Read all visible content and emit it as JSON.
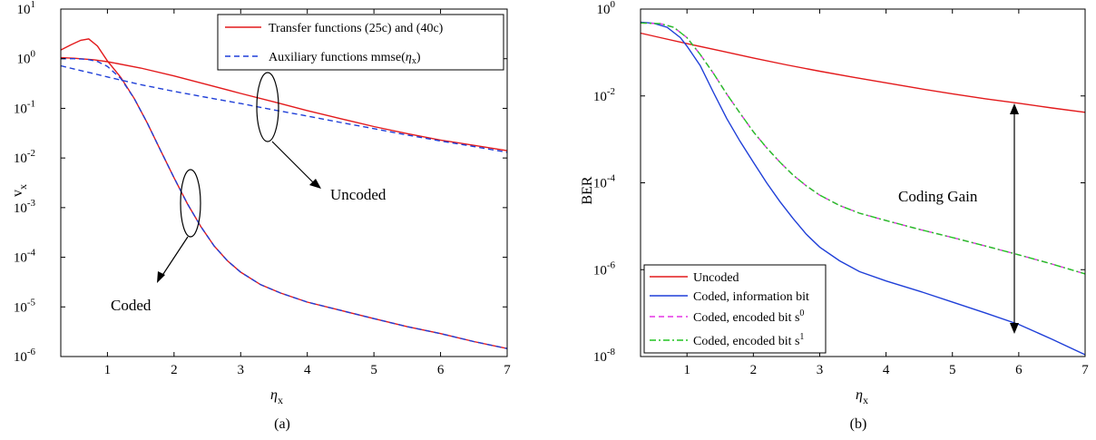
{
  "chart_data": [
    {
      "id": "a",
      "type": "line",
      "caption": "(a)",
      "xlabel": "η_x",
      "ylabel": "v_x",
      "xlim": [
        0.3,
        7
      ],
      "ylim_log10": [
        -6,
        1
      ],
      "y_scale": "log",
      "x_ticks": [
        1,
        2,
        3,
        4,
        5,
        6,
        7
      ],
      "y_ticks_exp": [
        -6,
        -5,
        -4,
        -3,
        -2,
        -1,
        0,
        1
      ],
      "grid": false,
      "legend_position": "top-right",
      "series": [
        {
          "name": "Transfer functions (25c) and (40c)",
          "color": "#e31a1c",
          "dash": "solid",
          "points": [
            [
              0.3,
              1.5
            ],
            [
              0.45,
              1.9
            ],
            [
              0.6,
              2.35
            ],
            [
              0.72,
              2.5
            ],
            [
              0.85,
              1.8
            ],
            [
              1.0,
              0.9
            ],
            [
              1.2,
              0.42
            ],
            [
              1.4,
              0.16
            ],
            [
              1.6,
              0.05
            ],
            [
              1.8,
              0.014
            ],
            [
              2.0,
              0.004
            ],
            [
              2.2,
              0.0012
            ],
            [
              2.4,
              0.00042
            ],
            [
              2.6,
              0.00017
            ],
            [
              2.8,
              8.5e-05
            ],
            [
              3.0,
              5e-05
            ],
            [
              3.3,
              2.8e-05
            ],
            [
              3.6,
              1.9e-05
            ],
            [
              4.0,
              1.25e-05
            ],
            [
              4.5,
              8.5e-06
            ],
            [
              5.0,
              5.8e-06
            ],
            [
              5.5,
              4e-06
            ],
            [
              6.0,
              2.9e-06
            ],
            [
              6.5,
              2e-06
            ],
            [
              7.0,
              1.45e-06
            ]
          ]
        },
        {
          "name": "Transfer functions (25c) and (40c)",
          "color": "#e31a1c",
          "dash": "solid",
          "points": [
            [
              0.3,
              1.05
            ],
            [
              0.5,
              1.02
            ],
            [
              0.8,
              0.95
            ],
            [
              1.0,
              0.87
            ],
            [
              1.5,
              0.65
            ],
            [
              2.0,
              0.45
            ],
            [
              2.5,
              0.3
            ],
            [
              3.0,
              0.2
            ],
            [
              3.5,
              0.135
            ],
            [
              4.0,
              0.09
            ],
            [
              4.5,
              0.062
            ],
            [
              5.0,
              0.043
            ],
            [
              5.5,
              0.031
            ],
            [
              6.0,
              0.023
            ],
            [
              6.5,
              0.018
            ],
            [
              7.0,
              0.014
            ]
          ]
        },
        {
          "name": "Auxiliary functions mmse(η_x)",
          "color": "#1f3fd8",
          "dash": "dashed",
          "points": [
            [
              0.3,
              0.72
            ],
            [
              0.5,
              0.62
            ],
            [
              0.8,
              0.5
            ],
            [
              1.0,
              0.43
            ],
            [
              1.5,
              0.3
            ],
            [
              2.0,
              0.22
            ],
            [
              2.5,
              0.165
            ],
            [
              3.0,
              0.125
            ],
            [
              3.5,
              0.093
            ],
            [
              4.0,
              0.07
            ],
            [
              4.5,
              0.052
            ],
            [
              5.0,
              0.039
            ],
            [
              5.5,
              0.029
            ],
            [
              6.0,
              0.022
            ],
            [
              6.5,
              0.017
            ],
            [
              7.0,
              0.013
            ]
          ]
        },
        {
          "name": "Auxiliary functions mmse(η_x)",
          "color": "#1f3fd8",
          "dash": "dashed",
          "points": [
            [
              0.3,
              1.0
            ],
            [
              0.5,
              1.0
            ],
            [
              0.7,
              0.97
            ],
            [
              0.85,
              0.88
            ],
            [
              1.0,
              0.7
            ],
            [
              1.2,
              0.4
            ],
            [
              1.4,
              0.16
            ],
            [
              1.6,
              0.05
            ],
            [
              1.8,
              0.014
            ],
            [
              2.0,
              0.004
            ],
            [
              2.2,
              0.0012
            ],
            [
              2.4,
              0.00042
            ],
            [
              2.6,
              0.00017
            ],
            [
              2.8,
              8.5e-05
            ],
            [
              3.0,
              5e-05
            ],
            [
              3.3,
              2.8e-05
            ],
            [
              3.6,
              1.9e-05
            ],
            [
              4.0,
              1.25e-05
            ],
            [
              4.5,
              8.5e-06
            ],
            [
              5.0,
              5.8e-06
            ],
            [
              5.5,
              4e-06
            ],
            [
              6.0,
              2.9e-06
            ],
            [
              6.5,
              2e-06
            ],
            [
              7.0,
              1.45e-06
            ]
          ]
        }
      ],
      "legend": [
        {
          "label": "Transfer functions (25c) and (40c)",
          "color": "#e31a1c",
          "dash": "solid"
        },
        {
          "label": "Auxiliary functions mmse(η_x)",
          "color": "#1f3fd8",
          "dash": "dashed"
        }
      ],
      "annotations": [
        "Uncoded",
        "Coded"
      ]
    },
    {
      "id": "b",
      "type": "line",
      "caption": "(b)",
      "xlabel": "η_x",
      "ylabel": "BER",
      "xlim": [
        0.3,
        7
      ],
      "ylim_log10": [
        -8,
        0
      ],
      "y_scale": "log",
      "x_ticks": [
        1,
        2,
        3,
        4,
        5,
        6,
        7
      ],
      "y_ticks_exp": [
        -8,
        -6,
        -4,
        -2,
        0
      ],
      "grid": false,
      "legend_position": "bottom-left",
      "series": [
        {
          "name": "Uncoded",
          "color": "#e31a1c",
          "dash": "solid",
          "points": [
            [
              0.3,
              0.28
            ],
            [
              0.6,
              0.22
            ],
            [
              1.0,
              0.16
            ],
            [
              1.5,
              0.11
            ],
            [
              2.0,
              0.075
            ],
            [
              2.5,
              0.052
            ],
            [
              3.0,
              0.037
            ],
            [
              3.5,
              0.027
            ],
            [
              4.0,
              0.02
            ],
            [
              4.5,
              0.0148
            ],
            [
              5.0,
              0.0112
            ],
            [
              5.5,
              0.0086
            ],
            [
              6.0,
              0.0068
            ],
            [
              6.5,
              0.0053
            ],
            [
              7.0,
              0.0042
            ]
          ]
        },
        {
          "name": "Coded, information bit",
          "color": "#1f3fd8",
          "dash": "solid",
          "points": [
            [
              0.3,
              0.5
            ],
            [
              0.5,
              0.47
            ],
            [
              0.7,
              0.38
            ],
            [
              0.9,
              0.22
            ],
            [
              1.0,
              0.14
            ],
            [
              1.2,
              0.05
            ],
            [
              1.4,
              0.012
            ],
            [
              1.6,
              0.003
            ],
            [
              1.8,
              0.0009
            ],
            [
              2.0,
              0.0003
            ],
            [
              2.2,
              0.0001
            ],
            [
              2.4,
              3.7e-05
            ],
            [
              2.6,
              1.5e-05
            ],
            [
              2.8,
              6.5e-06
            ],
            [
              3.0,
              3.3e-06
            ],
            [
              3.3,
              1.6e-06
            ],
            [
              3.6,
              9e-07
            ],
            [
              4.0,
              5.5e-07
            ],
            [
              4.5,
              3.2e-07
            ],
            [
              5.0,
              1.8e-07
            ],
            [
              5.5,
              1e-07
            ],
            [
              6.0,
              5.5e-08
            ],
            [
              6.5,
              2.5e-08
            ],
            [
              7.0,
              1.1e-08
            ]
          ]
        },
        {
          "name": "Coded, encoded bit s0",
          "color": "#e632e6",
          "dash": "dashed",
          "points": [
            [
              0.3,
              0.48
            ],
            [
              0.6,
              0.46
            ],
            [
              0.8,
              0.38
            ],
            [
              1.0,
              0.22
            ],
            [
              1.2,
              0.09
            ],
            [
              1.4,
              0.033
            ],
            [
              1.6,
              0.011
            ],
            [
              1.8,
              0.004
            ],
            [
              2.0,
              0.0015
            ],
            [
              2.2,
              0.00064
            ],
            [
              2.4,
              0.0003
            ],
            [
              2.6,
              0.00015
            ],
            [
              2.8,
              8.5e-05
            ],
            [
              3.0,
              5.2e-05
            ],
            [
              3.3,
              3e-05
            ],
            [
              3.6,
              2e-05
            ],
            [
              4.0,
              1.35e-05
            ],
            [
              4.5,
              8.5e-06
            ],
            [
              5.0,
              5.5e-06
            ],
            [
              5.5,
              3.5e-06
            ],
            [
              6.0,
              2.2e-06
            ],
            [
              6.5,
              1.35e-06
            ],
            [
              7.0,
              8e-07
            ]
          ]
        },
        {
          "name": "Coded, encoded bit s1",
          "color": "#22c422",
          "dash": "dashdot",
          "points": [
            [
              0.3,
              0.48
            ],
            [
              0.6,
              0.46
            ],
            [
              0.8,
              0.38
            ],
            [
              1.0,
              0.22
            ],
            [
              1.2,
              0.09
            ],
            [
              1.4,
              0.033
            ],
            [
              1.6,
              0.011
            ],
            [
              1.8,
              0.004
            ],
            [
              2.0,
              0.0015
            ],
            [
              2.2,
              0.00064
            ],
            [
              2.4,
              0.0003
            ],
            [
              2.6,
              0.00015
            ],
            [
              2.8,
              8.5e-05
            ],
            [
              3.0,
              5.2e-05
            ],
            [
              3.3,
              3e-05
            ],
            [
              3.6,
              2e-05
            ],
            [
              4.0,
              1.35e-05
            ],
            [
              4.5,
              8.5e-06
            ],
            [
              5.0,
              5.5e-06
            ],
            [
              5.5,
              3.5e-06
            ],
            [
              6.0,
              2.2e-06
            ],
            [
              6.5,
              1.35e-06
            ],
            [
              7.0,
              8e-07
            ]
          ]
        }
      ],
      "legend": [
        {
          "label": "Uncoded",
          "sup": "",
          "color": "#e31a1c",
          "dash": "solid"
        },
        {
          "label": "Coded, information bit",
          "sup": "",
          "color": "#1f3fd8",
          "dash": "solid"
        },
        {
          "label": "Coded, encoded bit s",
          "sup": "0",
          "color": "#e632e6",
          "dash": "dashed"
        },
        {
          "label": "Coded, encoded bit s",
          "sup": "1",
          "color": "#22c422",
          "dash": "dashdot"
        }
      ],
      "annotations": [
        "Coding Gain"
      ]
    }
  ]
}
